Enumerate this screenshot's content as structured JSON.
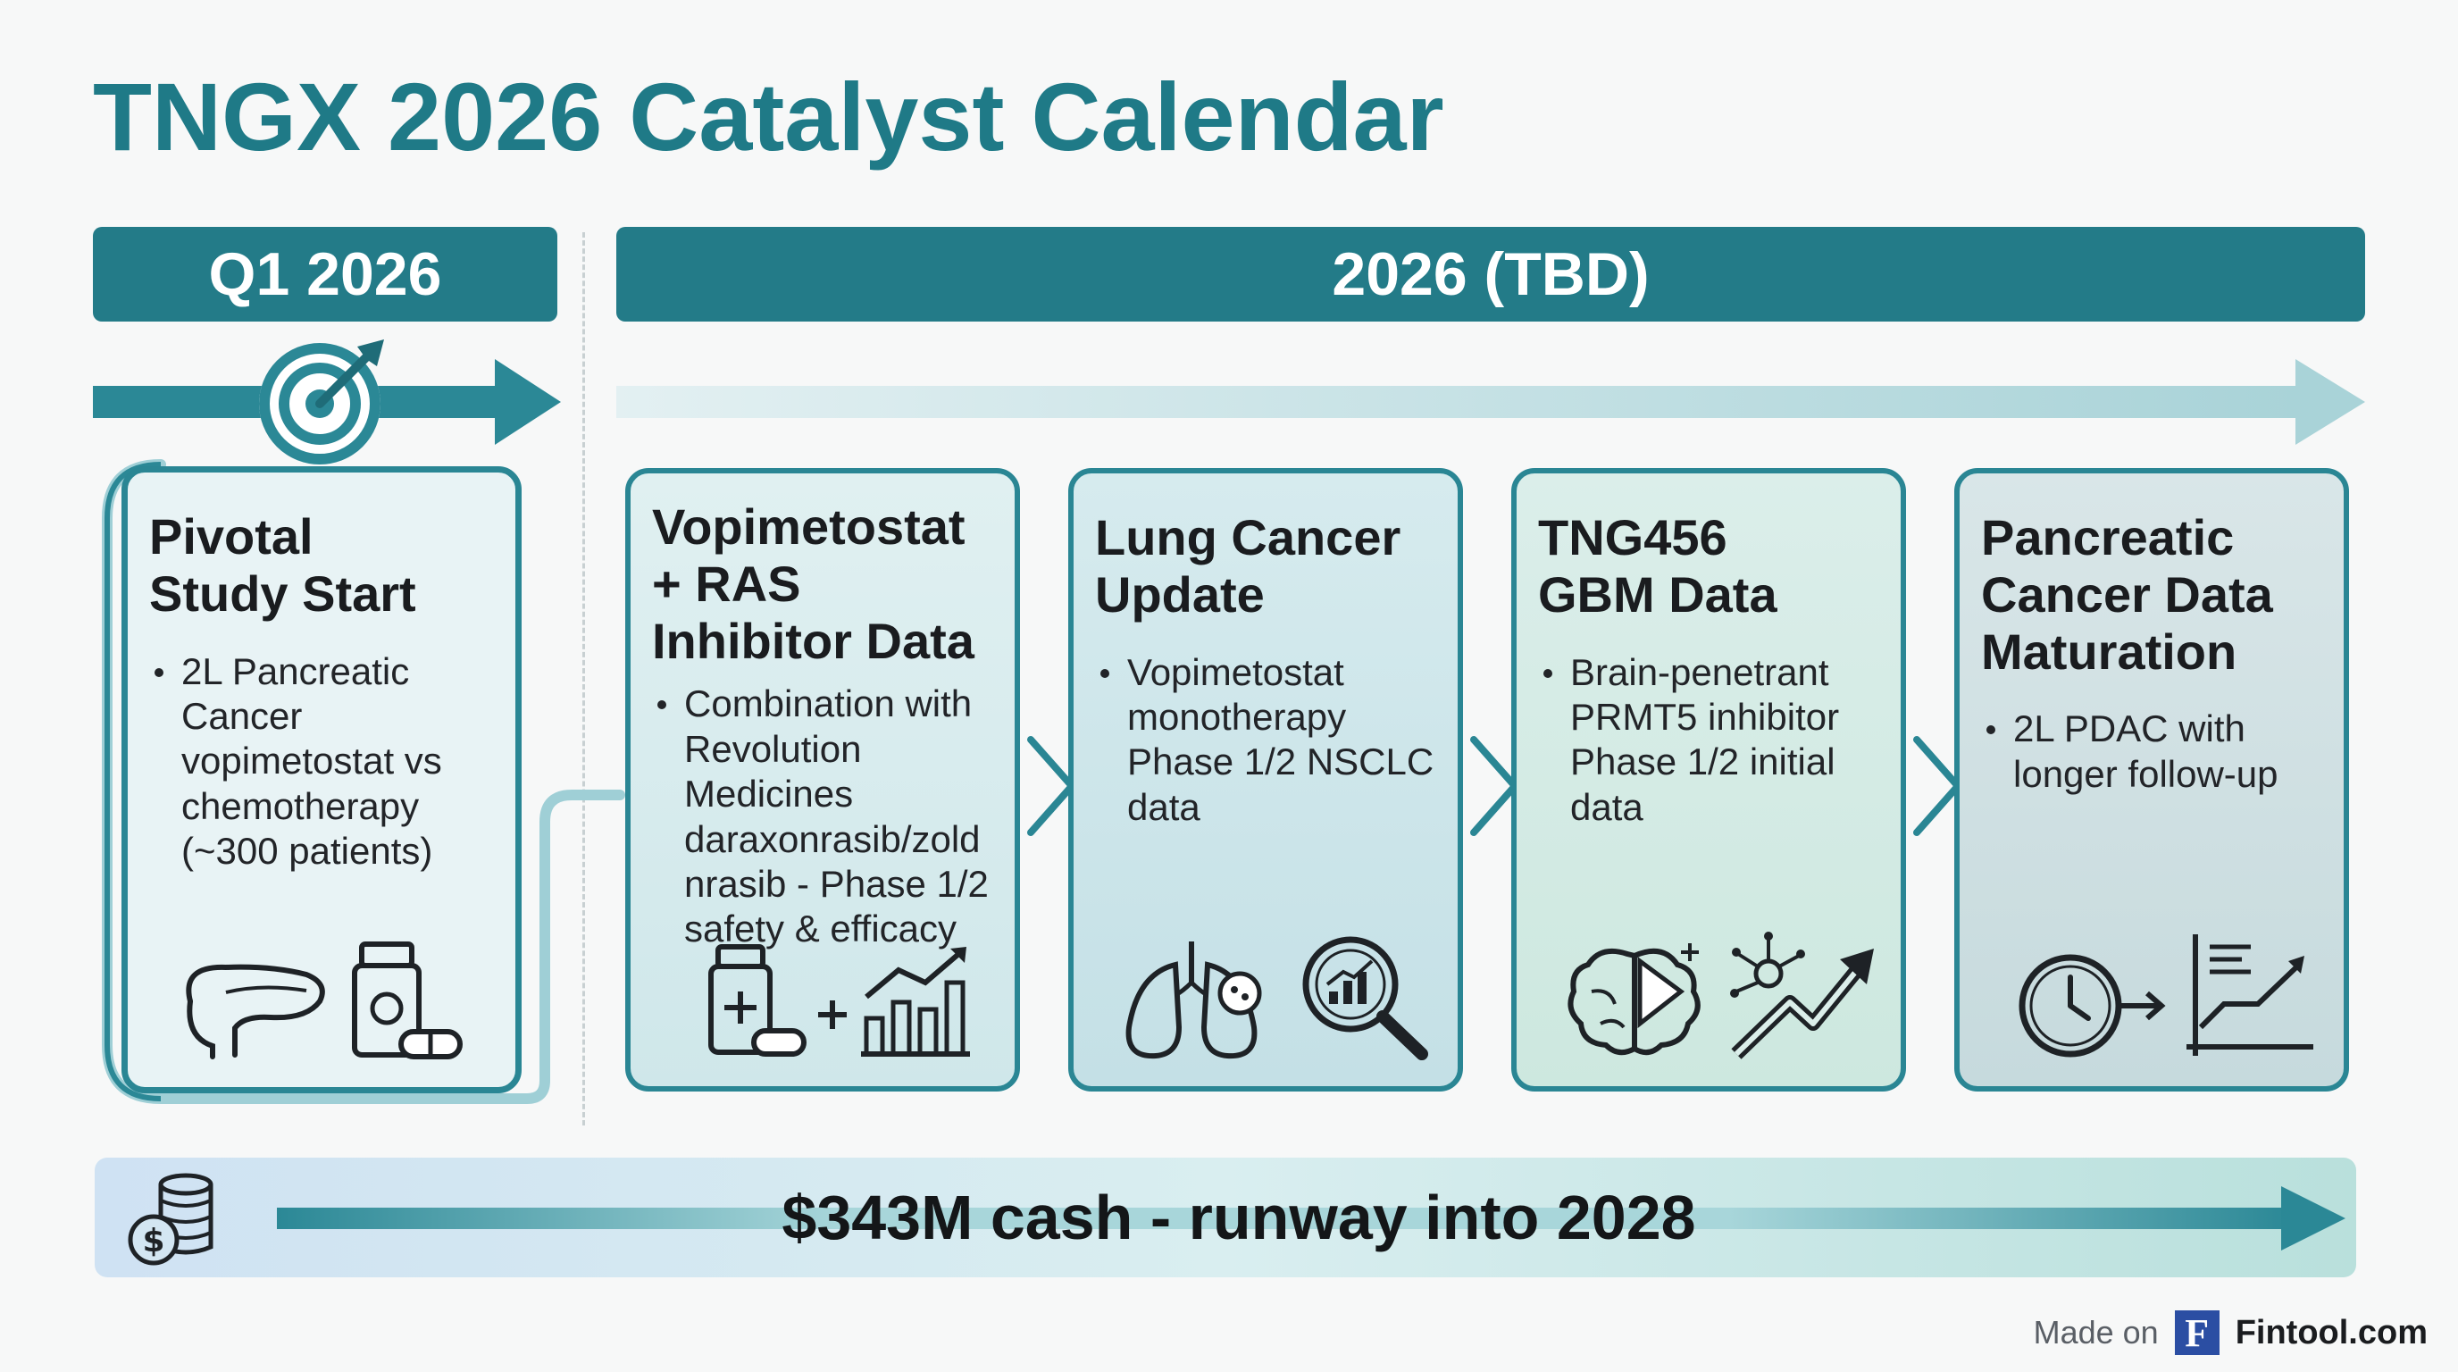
{
  "title": "TNGX 2026 Catalyst Calendar",
  "banners": {
    "q1": "Q1 2026",
    "tbd": "2026 (TBD)"
  },
  "cards": [
    {
      "title": "Pivotal Study Start",
      "bullets": [
        "2L Pancreatic Cancer vopimetostat vs chemotherapy (~300 patients)"
      ],
      "icons": [
        "pancreas-icon",
        "pill-bottle-icon"
      ]
    },
    {
      "title": "Vopimetostat + RAS Inhibitor Data",
      "bullets": [
        "Combination with Revolution Medicines daraxonrasib/zold nrasib - Phase 1/2 safety & efficacy"
      ],
      "icons": [
        "pill-bottle-icon",
        "plus-icon",
        "bar-chart-up-icon"
      ]
    },
    {
      "title": "Lung Cancer Update",
      "bullets": [
        "Vopimetostat monotherapy Phase 1/2 NSCLC data"
      ],
      "icons": [
        "lungs-icon",
        "magnifier-chart-icon"
      ]
    },
    {
      "title": "TNG456 GBM Data",
      "bullets": [
        "Brain-penetrant PRMT5 inhibitor Phase 1/2 initial data"
      ],
      "icons": [
        "brain-icon",
        "network-trend-icon"
      ]
    },
    {
      "title": "Pancreatic Cancer Data Maturation",
      "bullets": [
        "2L PDAC with longer follow-up"
      ],
      "icons": [
        "clock-arrow-icon",
        "line-chart-icon"
      ]
    }
  ],
  "cash": {
    "text": "$343M cash - runway into 2028",
    "icon": "coins-dollar-icon"
  },
  "footer": {
    "made_on": "Made on",
    "logo_letter": "F",
    "brand": "Fintool.com"
  },
  "colors": {
    "primary_teal": "#237b88",
    "title_teal": "#1f7a87",
    "card_border": "#2a8694"
  }
}
